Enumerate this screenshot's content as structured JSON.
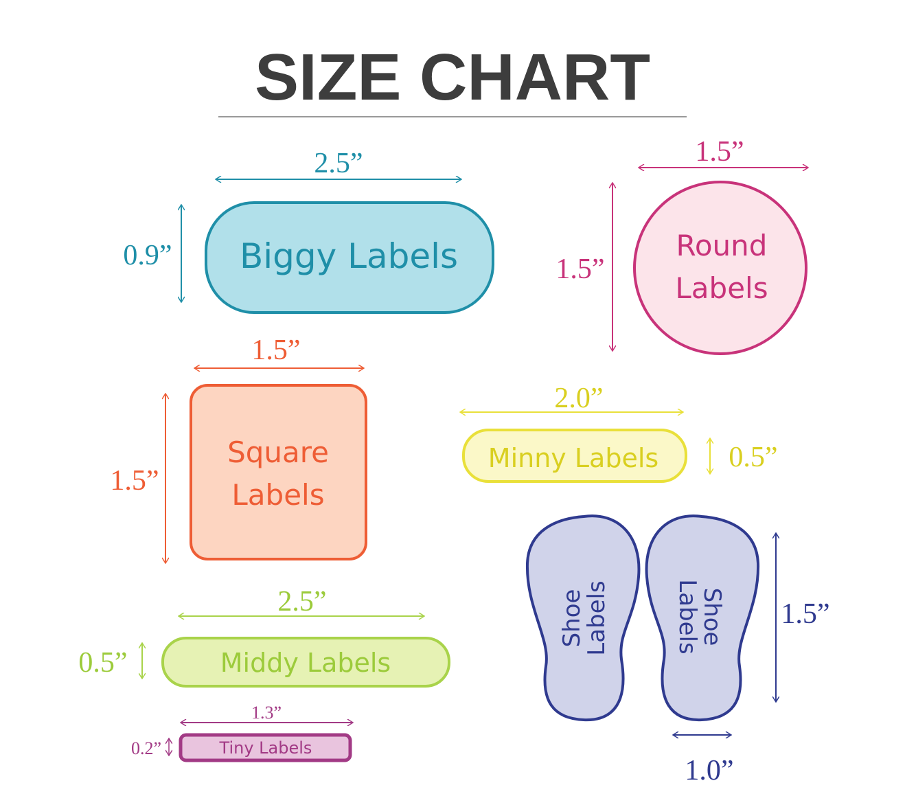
{
  "title": "SIZE CHART",
  "labels": {
    "biggy": {
      "name": "Biggy Labels",
      "width": "2.5”",
      "height": "0.9”",
      "stroke": "#1f8fa8",
      "fill": "#b1e0ea"
    },
    "round": {
      "name_line1": "Round",
      "name_line2": "Labels",
      "width": "1.5”",
      "height": "1.5”",
      "stroke": "#c8337a",
      "fill": "#fce4ea"
    },
    "square": {
      "name_line1": "Square",
      "name_line2": "Labels",
      "width": "1.5”",
      "height": "1.5”",
      "stroke": "#ee5d35",
      "fill": "#fdd5c1"
    },
    "minny": {
      "name": "Minny Labels",
      "width": "2.0”",
      "height": "0.5”",
      "stroke": "#e9e03a",
      "fill": "#fbf8c8"
    },
    "middy": {
      "name": "Middy Labels",
      "width": "2.5”",
      "height": "0.5”",
      "stroke": "#a9d34a",
      "fill": "#e6f2b4"
    },
    "tiny": {
      "name": "Tiny Labels",
      "width": "1.3”",
      "height": "0.2”",
      "stroke": "#a23a85",
      "fill": "#e9c4de"
    },
    "shoe": {
      "name_line1": "Shoe",
      "name_line2": "Labels",
      "width": "1.0”",
      "height": "1.5”",
      "stroke": "#2f3a8f",
      "fill": "#d0d3ea"
    }
  }
}
